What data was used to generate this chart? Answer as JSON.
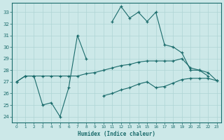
{
  "xlabel": "Humidex (Indice chaleur)",
  "bg_color": "#cce8e8",
  "line_color": "#1a6b6b",
  "grid_color": "#aed4d4",
  "x_values": [
    0,
    1,
    2,
    3,
    4,
    5,
    6,
    7,
    8,
    9,
    10,
    11,
    12,
    13,
    14,
    15,
    16,
    17,
    18,
    19,
    20,
    21,
    22,
    23
  ],
  "series1": [
    27.0,
    27.5,
    27.5,
    25.0,
    25.2,
    24.0,
    26.5,
    31.0,
    29.0,
    null,
    null,
    32.2,
    33.5,
    32.5,
    33.0,
    32.2,
    33.0,
    30.2,
    30.0,
    29.5,
    28.0,
    28.0,
    27.5,
    null
  ],
  "series2": [
    27.0,
    null,
    null,
    null,
    null,
    null,
    null,
    null,
    null,
    null,
    null,
    null,
    null,
    null,
    null,
    null,
    null,
    null,
    null,
    null,
    null,
    null,
    null,
    null
  ],
  "series3": [
    27.0,
    27.5,
    27.5,
    27.5,
    27.5,
    27.5,
    27.5,
    27.5,
    27.7,
    27.8,
    28.0,
    28.2,
    28.4,
    28.5,
    28.7,
    28.8,
    28.8,
    28.8,
    28.8,
    29.0,
    28.2,
    28.0,
    27.8,
    27.1
  ],
  "series4": [
    null,
    null,
    null,
    null,
    null,
    null,
    null,
    null,
    null,
    null,
    25.8,
    26.0,
    26.3,
    26.5,
    26.8,
    27.0,
    26.5,
    26.6,
    26.9,
    27.2,
    27.3,
    27.3,
    27.3,
    27.1
  ],
  "ylim_min": 23.5,
  "ylim_max": 33.8,
  "xlim_min": -0.5,
  "xlim_max": 23.5,
  "yticks": [
    24,
    25,
    26,
    27,
    28,
    29,
    30,
    31,
    32,
    33
  ],
  "xticks": [
    0,
    1,
    2,
    3,
    4,
    5,
    6,
    7,
    8,
    9,
    10,
    11,
    12,
    13,
    14,
    15,
    16,
    17,
    18,
    19,
    20,
    21,
    22,
    23
  ]
}
